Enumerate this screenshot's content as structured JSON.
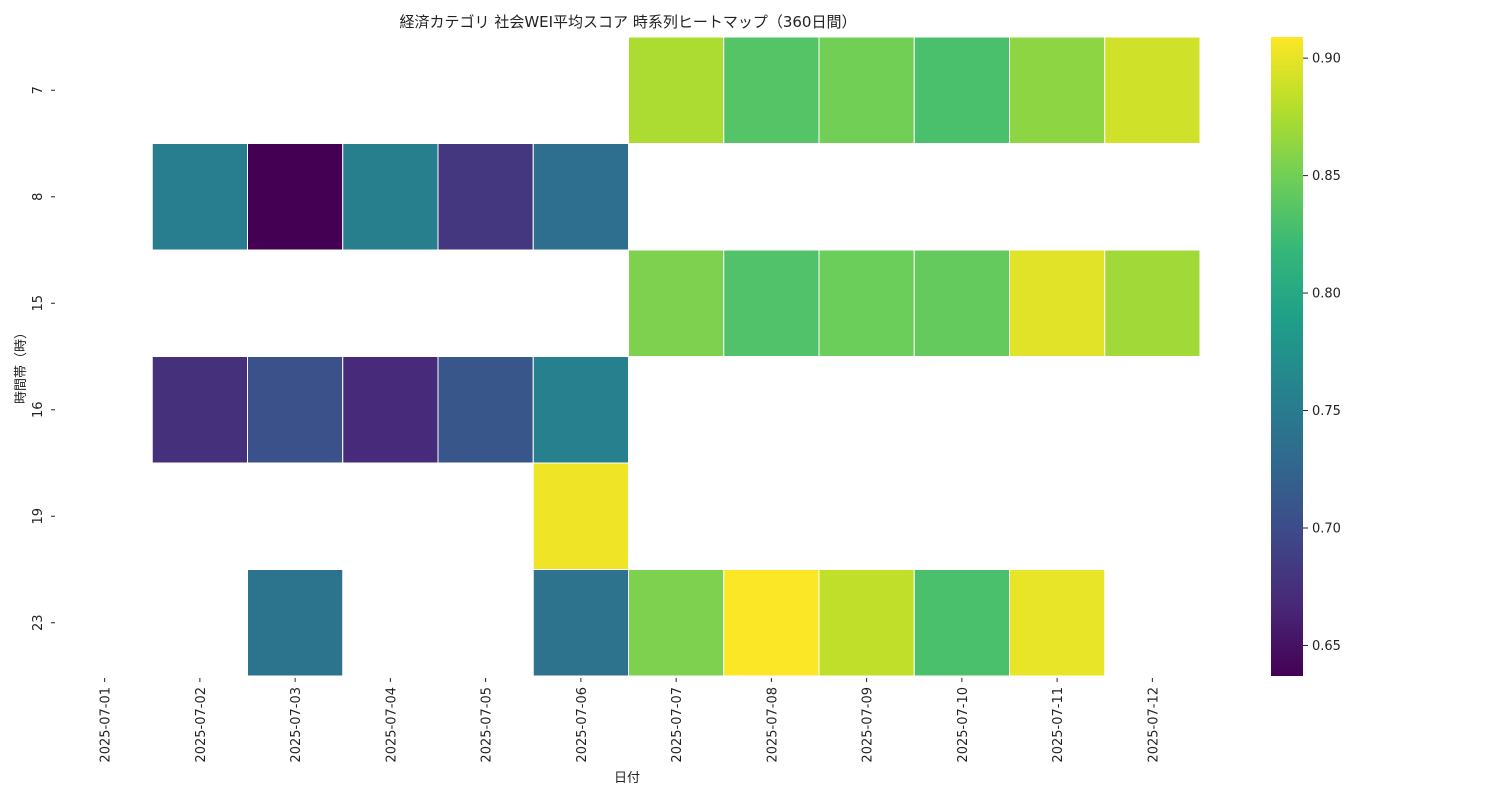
{
  "chart_data": {
    "type": "heatmap",
    "title": "経済カテゴリ 社会WEI平均スコア 時系列ヒートマップ（360日間）",
    "xlabel": "日付",
    "ylabel": "時間帯（時）",
    "x": [
      "2025-07-01",
      "2025-07-02",
      "2025-07-03",
      "2025-07-04",
      "2025-07-05",
      "2025-07-06",
      "2025-07-07",
      "2025-07-08",
      "2025-07-09",
      "2025-07-10",
      "2025-07-11",
      "2025-07-12"
    ],
    "y": [
      "7",
      "8",
      "15",
      "16",
      "19",
      "23"
    ],
    "values": [
      [
        null,
        null,
        null,
        null,
        null,
        null,
        0.875,
        0.835,
        0.85,
        0.83,
        0.862,
        0.89
      ],
      [
        null,
        0.752,
        0.637,
        0.754,
        0.68,
        0.735,
        null,
        null,
        null,
        null,
        null,
        null
      ],
      [
        null,
        null,
        null,
        null,
        null,
        null,
        0.855,
        0.833,
        0.847,
        0.843,
        0.897,
        0.87
      ],
      [
        null,
        0.675,
        0.705,
        0.67,
        0.71,
        0.755,
        null,
        null,
        null,
        null,
        null,
        null
      ],
      [
        null,
        null,
        null,
        null,
        null,
        0.903,
        null,
        null,
        null,
        null,
        null,
        null
      ],
      [
        null,
        null,
        0.741,
        null,
        null,
        0.74,
        0.855,
        0.908,
        0.883,
        0.83,
        0.9,
        null
      ]
    ],
    "colorbar": {
      "colormap": "viridis",
      "vmin": 0.637,
      "vmax": 0.909,
      "ticks": [
        0.65,
        0.7,
        0.75,
        0.8,
        0.85,
        0.9
      ],
      "tick_labels": [
        "0.65",
        "0.70",
        "0.75",
        "0.80",
        "0.85",
        "0.90"
      ]
    },
    "grid": false,
    "legend": "colorbar-right"
  }
}
